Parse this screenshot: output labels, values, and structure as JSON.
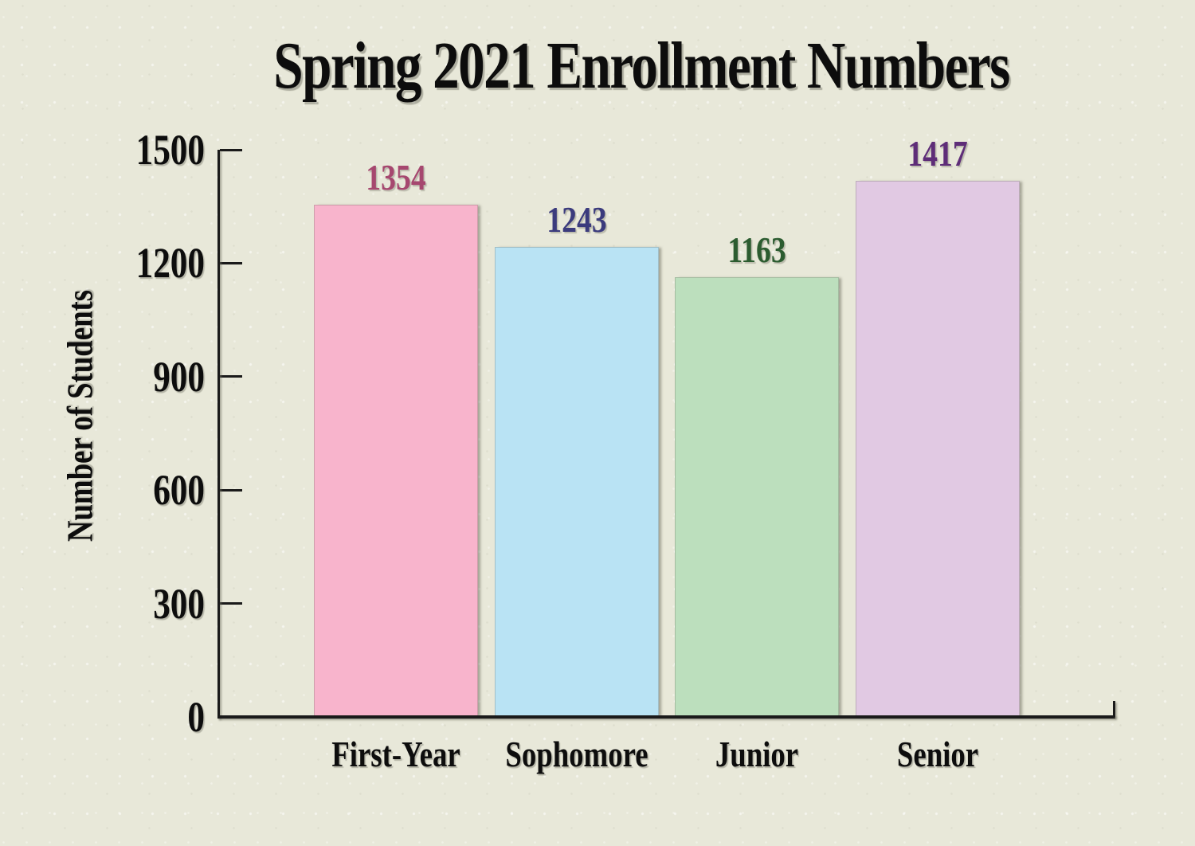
{
  "title": "Spring 2021 Enrollment Numbers",
  "colors": {
    "background": "#e8e8d9",
    "axis": "#1a1a1a",
    "text": "#0d0d0d"
  },
  "chart_data": {
    "type": "bar",
    "title": "Spring 2021 Enrollment Numbers",
    "xlabel": "",
    "ylabel": "Number of Students",
    "categories": [
      "First-Year",
      "Sophomore",
      "Junior",
      "Senior"
    ],
    "values": [
      1354,
      1243,
      1163,
      1417
    ],
    "bar_colors": [
      "#f8b4cc",
      "#b9e3f4",
      "#bcdfbd",
      "#e1c9e3"
    ],
    "value_label_colors": [
      "#a6476f",
      "#3b3b7d",
      "#2c5c30",
      "#5e2d78"
    ],
    "ylim": [
      0,
      1500
    ],
    "yticks": [
      0,
      300,
      600,
      900,
      1200,
      1500
    ],
    "grid": false,
    "legend_position": "none",
    "value_labels_shown": true
  }
}
